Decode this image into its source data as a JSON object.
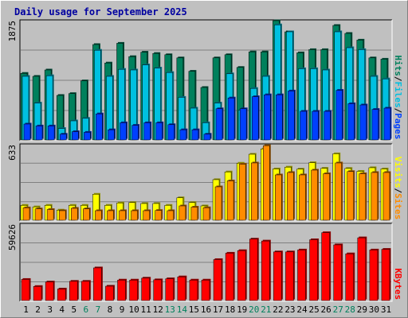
{
  "chart_data": {
    "type": "bar",
    "title": "Daily usage for September 2025",
    "categories": [
      "1",
      "2",
      "3",
      "4",
      "5",
      "6",
      "7",
      "8",
      "9",
      "10",
      "11",
      "12",
      "13",
      "14",
      "15",
      "16",
      "17",
      "18",
      "19",
      "20",
      "21",
      "22",
      "23",
      "24",
      "25",
      "26",
      "27",
      "28",
      "29",
      "30",
      "31"
    ],
    "weekend_days": [
      "6",
      "7",
      "13",
      "14",
      "20",
      "21",
      "27",
      "28"
    ],
    "panels": [
      {
        "id": "top",
        "ymax_label": "1875",
        "ymax": 1875,
        "legend": [
          "Pages",
          "/",
          "Files",
          "/",
          "Hits"
        ],
        "series": [
          {
            "name": "Hits",
            "color": "#00805c",
            "values": [
              1047,
              1000,
              1100,
              700,
              729,
              929,
              1500,
              1210,
              1520,
              1310,
              1380,
              1360,
              1340,
              1290,
              1080,
              825,
              1290,
              1340,
              1140,
              1385,
              1385,
              1875,
              1700,
              1370,
              1420,
              1420,
              1800,
              1675,
              1570,
              1290,
              1270
            ]
          },
          {
            "name": "Files",
            "color": "#00c0e0",
            "values": [
              1000,
              580,
              1010,
              180,
              300,
              340,
              1410,
              1000,
              1110,
              1100,
              1180,
              1130,
              1060,
              670,
              500,
              270,
              580,
              1040,
              470,
              810,
              1000,
              1810,
              1700,
              1120,
              1120,
              1100,
              1700,
              1450,
              1420,
              1000,
              960
            ]
          },
          {
            "name": "Pages",
            "color": "#0040ff",
            "values": [
              250,
              220,
              220,
              90,
              130,
              120,
              410,
              160,
              270,
              230,
              270,
              270,
              240,
              160,
              160,
              90,
              490,
              660,
              490,
              680,
              710,
              710,
              770,
              450,
              450,
              450,
              780,
              570,
              550,
              480,
              500
            ]
          }
        ]
      },
      {
        "id": "middle",
        "ymax_label": "633",
        "ymax": 633,
        "legend": [
          "Sites",
          "/",
          "Visits"
        ],
        "series": [
          {
            "name": "Visits",
            "color": "#ffff00",
            "values": [
              125,
              112,
              125,
              85,
              125,
              125,
              218,
              125,
              145,
              148,
              140,
              140,
              125,
              188,
              148,
              120,
              340,
              405,
              478,
              553,
              598,
              430,
              445,
              428,
              482,
              435,
              557,
              434,
              410,
              440,
              430
            ]
          },
          {
            "name": "Sites",
            "color": "#ff8c00",
            "values": [
              104,
              95,
              90,
              80,
              100,
              95,
              80,
              80,
              80,
              80,
              80,
              82,
              80,
              120,
              110,
              105,
              280,
              330,
              470,
              480,
              625,
              380,
              400,
              380,
              420,
              390,
              480,
              408,
              390,
              400,
              400
            ]
          }
        ]
      },
      {
        "id": "bottom",
        "ymax_label": "59626",
        "ymax": 59626,
        "legend": [
          "KBytes"
        ],
        "series": [
          {
            "name": "KBytes",
            "color": "#ff0000",
            "values": [
              16500,
              11000,
              14500,
              9000,
              15000,
              15000,
              25500,
              11200,
              16000,
              16000,
              17500,
              16200,
              17000,
              18500,
              16000,
              16000,
              32000,
              37000,
              39000,
              48000,
              46500,
              38000,
              38000,
              39500,
              47500,
              53000,
              43500,
              36500,
              49000,
              39500,
              40000
            ]
          }
        ]
      }
    ]
  }
}
